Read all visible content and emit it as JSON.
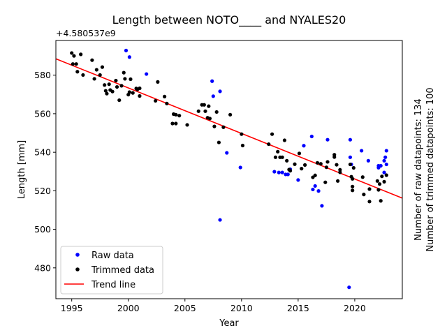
{
  "chart_data": {
    "type": "scatter",
    "title": "Length between NOTO____ and NYALES20",
    "xlabel": "Year",
    "ylabel": "Length [mm]",
    "y_offset_label": "+4.580537e9",
    "xlim": [
      1993.6,
      2024.2
    ],
    "ylim": [
      464,
      598
    ],
    "x_ticks": [
      1995,
      2000,
      2005,
      2010,
      2015,
      2020
    ],
    "y_ticks": [
      480,
      500,
      520,
      540,
      560,
      580
    ],
    "grid": false,
    "legend_position": "lower-left",
    "side_notes": [
      "Number of raw datapoints: 134",
      "Number of trimmed datapoints: 100"
    ],
    "series": [
      {
        "name": "Raw data",
        "kind": "marker",
        "color": "#0000ff",
        "points": [
          [
            1999.8,
            592.8
          ],
          [
            2000.1,
            589.4
          ],
          [
            2001.6,
            580.6
          ],
          [
            2007.4,
            576.9
          ],
          [
            2007.5,
            569.1
          ],
          [
            2008.1,
            571.6
          ],
          [
            2008.7,
            539.7
          ],
          [
            2009.9,
            532.1
          ],
          [
            2008.1,
            504.9
          ],
          [
            2012.9,
            529.9
          ],
          [
            2013.3,
            529.5
          ],
          [
            2013.6,
            529.5
          ],
          [
            2013.9,
            528.5
          ],
          [
            2014.1,
            528.5
          ],
          [
            2014.3,
            531.2
          ],
          [
            2015.0,
            525.6
          ],
          [
            2015.5,
            543.4
          ],
          [
            2016.2,
            548.2
          ],
          [
            2016.3,
            520.7
          ],
          [
            2016.5,
            522.5
          ],
          [
            2016.8,
            519.9
          ],
          [
            2017.1,
            512.2
          ],
          [
            2017.6,
            546.5
          ],
          [
            2019.6,
            546.5
          ],
          [
            2019.6,
            537.4
          ],
          [
            2019.7,
            533.7
          ],
          [
            2019.5,
            469.9
          ],
          [
            2020.6,
            540.8
          ],
          [
            2021.2,
            535.6
          ],
          [
            2022.1,
            533.0
          ],
          [
            2022.1,
            532.0
          ],
          [
            2022.3,
            533.0
          ],
          [
            2022.6,
            535.6
          ],
          [
            2022.7,
            537.4
          ],
          [
            2022.8,
            540.8
          ],
          [
            2022.8,
            533.7
          ],
          [
            2022.6,
            529.5
          ]
        ]
      },
      {
        "name": "Trimmed data",
        "kind": "marker",
        "color": "#000000",
        "points": [
          [
            1995.0,
            591.5
          ],
          [
            1995.1,
            585.8
          ],
          [
            1995.2,
            590.0
          ],
          [
            1995.4,
            585.8
          ],
          [
            1995.5,
            581.8
          ],
          [
            1995.8,
            590.8
          ],
          [
            1996.0,
            580.1
          ],
          [
            1996.8,
            587.8
          ],
          [
            1997.0,
            578.1
          ],
          [
            1997.2,
            582.8
          ],
          [
            1997.5,
            580.1
          ],
          [
            1997.7,
            584.2
          ],
          [
            1997.9,
            574.9
          ],
          [
            1998.0,
            571.9
          ],
          [
            1998.1,
            570.4
          ],
          [
            1998.3,
            575.3
          ],
          [
            1998.4,
            572.3
          ],
          [
            1998.6,
            571.5
          ],
          [
            1998.9,
            577.2
          ],
          [
            1999.0,
            573.9
          ],
          [
            1999.2,
            567.0
          ],
          [
            1999.4,
            574.5
          ],
          [
            1999.6,
            581.3
          ],
          [
            1999.7,
            578.1
          ],
          [
            2000.0,
            569.9
          ],
          [
            2000.1,
            571.2
          ],
          [
            2000.2,
            577.9
          ],
          [
            2000.4,
            570.8
          ],
          [
            2000.7,
            573.1
          ],
          [
            2000.8,
            572.6
          ],
          [
            2001.0,
            569.2
          ],
          [
            2002.4,
            566.7
          ],
          [
            2002.6,
            576.5
          ],
          [
            2003.2,
            568.9
          ],
          [
            2003.4,
            565.3
          ],
          [
            2003.9,
            554.9
          ],
          [
            2004.2,
            559.5
          ],
          [
            2004.2,
            554.9
          ],
          [
            2004.5,
            559.0
          ],
          [
            2005.2,
            554.2
          ],
          [
            2006.2,
            561.3
          ],
          [
            2006.5,
            564.6
          ],
          [
            2006.7,
            564.6
          ],
          [
            2006.8,
            561.3
          ],
          [
            2007.0,
            557.9
          ],
          [
            2007.1,
            563.9
          ],
          [
            2007.2,
            557.5
          ],
          [
            2007.6,
            553.4
          ],
          [
            2007.8,
            560.9
          ],
          [
            2008.0,
            545.1
          ],
          [
            2008.4,
            553.0
          ],
          [
            2009.0,
            559.5
          ],
          [
            2010.0,
            549.4
          ],
          [
            2010.1,
            543.5
          ],
          [
            2012.4,
            544.2
          ],
          [
            2012.7,
            549.4
          ],
          [
            2013.0,
            537.4
          ],
          [
            2013.2,
            540.3
          ],
          [
            2013.4,
            537.4
          ],
          [
            2013.6,
            537.4
          ],
          [
            2013.8,
            546.2
          ],
          [
            2014.0,
            535.6
          ],
          [
            2014.3,
            530.4
          ],
          [
            2014.7,
            533.8
          ],
          [
            2015.1,
            539.4
          ],
          [
            2015.3,
            531.5
          ],
          [
            2015.6,
            533.4
          ],
          [
            2016.3,
            527.0
          ],
          [
            2016.7,
            534.5
          ],
          [
            2017.4,
            524.4
          ],
          [
            2017.5,
            532.2
          ],
          [
            2017.6,
            535.0
          ],
          [
            2018.2,
            538.7
          ],
          [
            2018.2,
            537.5
          ],
          [
            2018.4,
            533.5
          ],
          [
            2018.5,
            525.1
          ],
          [
            2018.7,
            530.9
          ],
          [
            2018.7,
            529.6
          ],
          [
            2019.6,
            533.7
          ],
          [
            2019.7,
            527.3
          ],
          [
            2019.8,
            526.2
          ],
          [
            2019.8,
            522.2
          ],
          [
            2019.9,
            531.9
          ],
          [
            2019.8,
            520.2
          ],
          [
            2020.7,
            527.1
          ],
          [
            2020.8,
            518.1
          ],
          [
            2021.3,
            514.4
          ],
          [
            2021.3,
            520.9
          ],
          [
            2022.0,
            525.1
          ],
          [
            2022.1,
            520.5
          ],
          [
            2022.2,
            523.5
          ],
          [
            2022.3,
            514.8
          ],
          [
            2022.4,
            527.5
          ],
          [
            2022.6,
            524.7
          ],
          [
            2022.8,
            528.1
          ],
          [
            2014.2,
            531.0
          ],
          [
            2016.5,
            528.0
          ],
          [
            2017.0,
            534.0
          ],
          [
            2004.0,
            559.8
          ],
          [
            2001.0,
            573.2
          ]
        ]
      },
      {
        "name": "Trend line",
        "kind": "line",
        "color": "#ff0000",
        "points": [
          [
            1993.6,
            588.5
          ],
          [
            2024.2,
            516.2
          ]
        ]
      }
    ]
  }
}
